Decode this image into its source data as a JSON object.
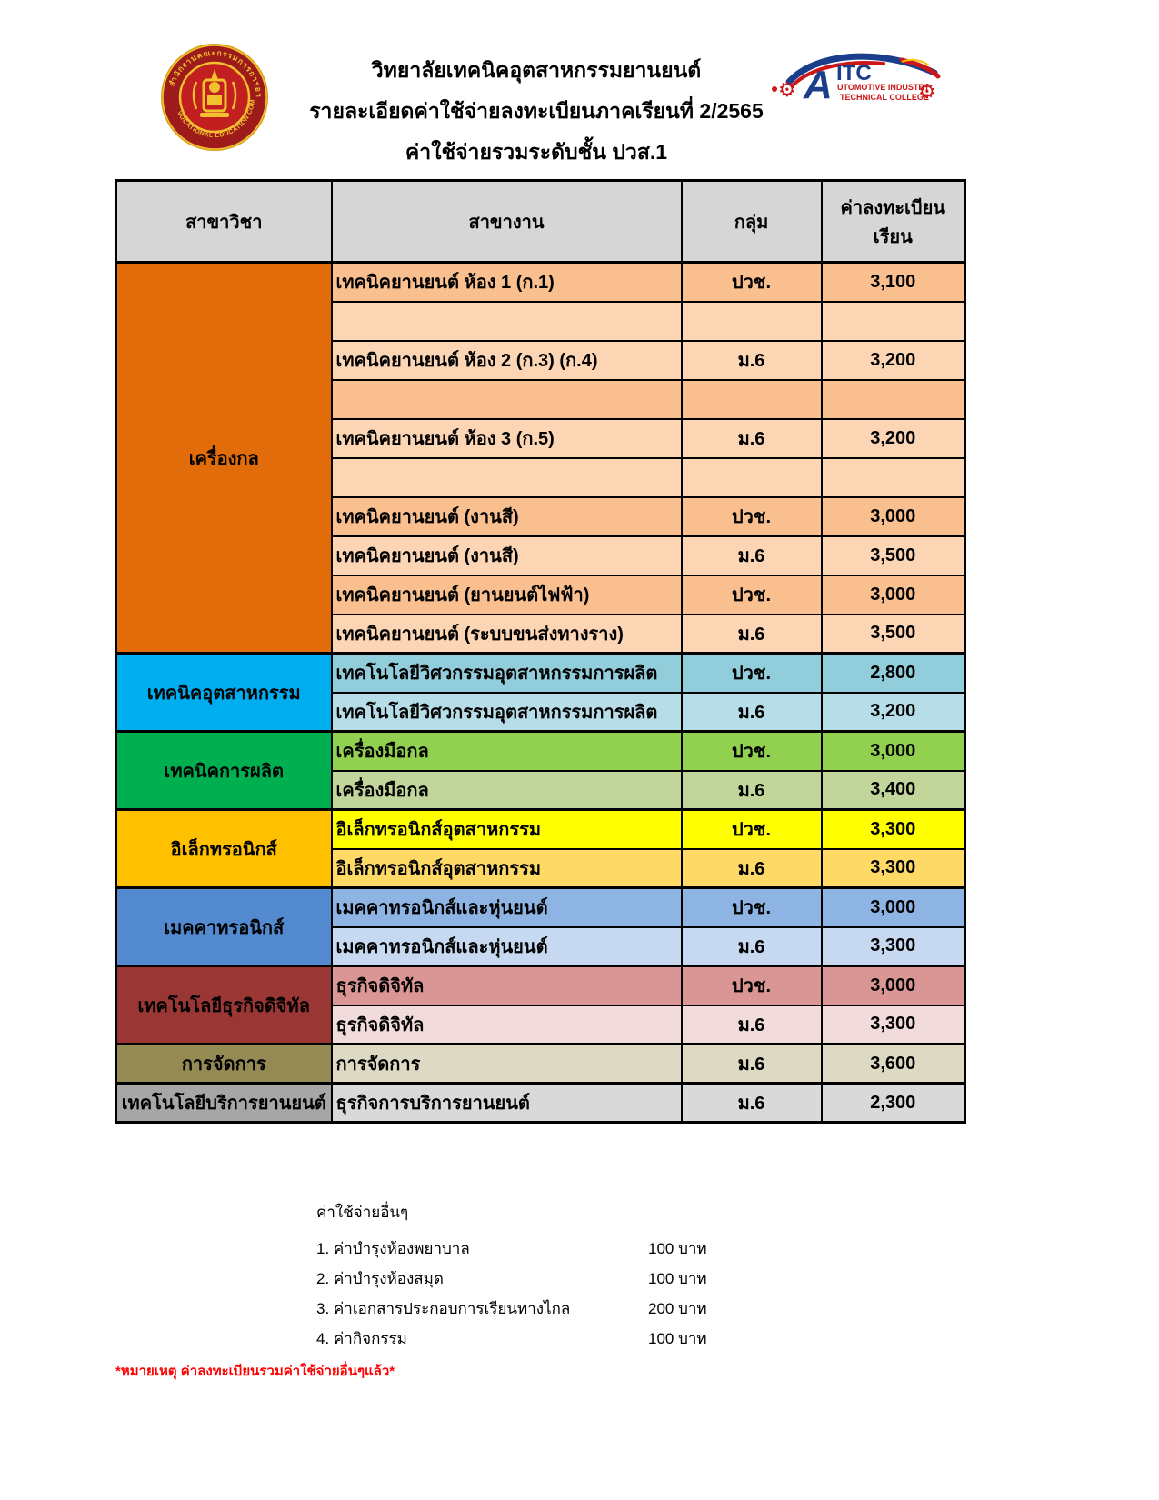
{
  "page": {
    "title_line1": "วิทยาลัยเทคนิคอุตสาหกรรมยานยนต์",
    "title_line2": "รายละเอียดค่าใช้จ่ายลงทะเบียนภาคเรียนที่ 2/2565",
    "title_line3": "ค่าใช้จ่ายรวมระดับชั้น ปวส.1"
  },
  "logos": {
    "left_seal_caption": "VOCATIONAL EDUCATION COMMISSION",
    "right": {
      "acronym_big": "A",
      "acronym_rest": "ITC",
      "name_line1": "UTOMOTIVE INDUSTRY",
      "name_line2": "TECHNICAL COLLEGE"
    }
  },
  "table": {
    "headers": [
      "สาขาวิชา",
      "สาขางาน",
      "กลุ่ม",
      "ค่าลงทะเบียนเรียน"
    ],
    "header_bg": "#d6d6d6",
    "sections": [
      {
        "name": "เครื่องกล",
        "header_color": "#E26B0A",
        "rows": [
          {
            "program": "เทคนิคยานยนต์  ห้อง 1 (ก.1)",
            "group": "ปวช.",
            "fee": "3,100",
            "bg": "#FABF8F"
          },
          {
            "program": "",
            "group": "",
            "fee": "",
            "bg": "#FCD5B4"
          },
          {
            "program": "เทคนิคยานยนต์  ห้อง 2  (ก.3) (ก.4)",
            "group": "ม.6",
            "fee": "3,200",
            "bg": "#FCD5B4"
          },
          {
            "program": "",
            "group": "",
            "fee": "",
            "bg": "#FABF8F"
          },
          {
            "program": "เทคนิคยานยนต์  ห้อง 3 (ก.5)",
            "group": "ม.6",
            "fee": "3,200",
            "bg": "#FCD5B4"
          },
          {
            "program": "",
            "group": "",
            "fee": "",
            "bg": "#FCD5B4"
          },
          {
            "program": "เทคนิคยานยนต์  (งานสี)",
            "group": "ปวช.",
            "fee": "3,000",
            "bg": "#FABF8F"
          },
          {
            "program": "เทคนิคยานยนต์  (งานสี)",
            "group": "ม.6",
            "fee": "3,500",
            "bg": "#FCD5B4"
          },
          {
            "program": "เทคนิคยานยนต์  (ยานยนต์ไฟฟ้า)",
            "group": "ปวช.",
            "fee": "3,000",
            "bg": "#FABF8F"
          },
          {
            "program": "เทคนิคยานยนต์  (ระบบขนส่งทางราง)",
            "group": "ม.6",
            "fee": "3,500",
            "bg": "#FCD5B4"
          }
        ]
      },
      {
        "name": "เทคนิคอุตสาหกรรม",
        "header_color": "#00AEEF",
        "rows": [
          {
            "program": "เทคโนโลยีวิศวกรรมอุตสาหกรรมการผลิต",
            "group": "ปวช.",
            "fee": "2,800",
            "bg": "#92CDDC"
          },
          {
            "program": "เทคโนโลยีวิศวกรรมอุตสาหกรรมการผลิต",
            "group": "ม.6",
            "fee": "3,200",
            "bg": "#B7DEE8"
          }
        ]
      },
      {
        "name": "เทคนิคการผลิต",
        "header_color": "#00B050",
        "rows": [
          {
            "program": "เครื่องมือกล",
            "group": "ปวช.",
            "fee": "3,000",
            "bg": "#92D050"
          },
          {
            "program": "เครื่องมือกล",
            "group": "ม.6",
            "fee": "3,400",
            "bg": "#C2D69B"
          }
        ]
      },
      {
        "name": "อิเล็กทรอนิกส์",
        "header_color": "#FFC000",
        "rows": [
          {
            "program": "อิเล็กทรอนิกส์อุตสาหกรรม",
            "group": "ปวช.",
            "fee": "3,300",
            "bg": "#FFFF00"
          },
          {
            "program": "อิเล็กทรอนิกส์อุตสาหกรรม",
            "group": "ม.6",
            "fee": "3,300",
            "bg": "#FFD966"
          }
        ]
      },
      {
        "name": "เมคคาทรอนิกส์",
        "header_color": "#5389CF",
        "rows": [
          {
            "program": "เมคคาทรอนิกส์และหุ่นยนต์",
            "group": "ปวช.",
            "fee": "3,000",
            "bg": "#8EB4E3"
          },
          {
            "program": "เมคคาทรอนิกส์และหุ่นยนต์",
            "group": "ม.6",
            "fee": "3,300",
            "bg": "#C6D9F1"
          }
        ]
      },
      {
        "name": "เทคโนโลยีธุรกิจดิจิทัล",
        "header_color": "#9A3634",
        "rows": [
          {
            "program": "ธุรกิจดิจิทัล",
            "group": "ปวช.",
            "fee": "3,000",
            "bg": "#D99694"
          },
          {
            "program": "ธุรกิจดิจิทัล",
            "group": "ม.6",
            "fee": "3,300",
            "bg": "#F2DCDB"
          }
        ]
      },
      {
        "name": "การจัดการ",
        "header_color": "#948A54",
        "rows": [
          {
            "program": "การจัดการ",
            "group": "ม.6",
            "fee": "3,600",
            "bg": "#DDD9C3"
          }
        ]
      },
      {
        "name": "เทคโนโลยีบริการยานยนต์",
        "header_color": "#A6A6A6",
        "rows": [
          {
            "program": "ธุรกิจการบริการยานยนต์",
            "group": "ม.6",
            "fee": "2,300",
            "bg": "#D9D9D9"
          }
        ]
      }
    ]
  },
  "notes": {
    "title": "ค่าใช้จ่ายอื่นๆ",
    "items": [
      {
        "label": "1. ค่าบำรุงห้องพยาบาล",
        "value": "100 บาท"
      },
      {
        "label": "2. ค่าบำรุงห้องสมุด",
        "value": "100 บาท"
      },
      {
        "label": "3. ค่าเอกสารประกอบการเรียนทางไกล",
        "value": "200 บาท"
      },
      {
        "label": "4. ค่ากิจกรรม",
        "value": "100 บาท"
      }
    ],
    "footnote": "*หมายเหตุ ค่าลงทะเบียนรวมค่าใช้จ่ายอื่นๆแล้ว*",
    "footnote_color": "#FF0000"
  }
}
